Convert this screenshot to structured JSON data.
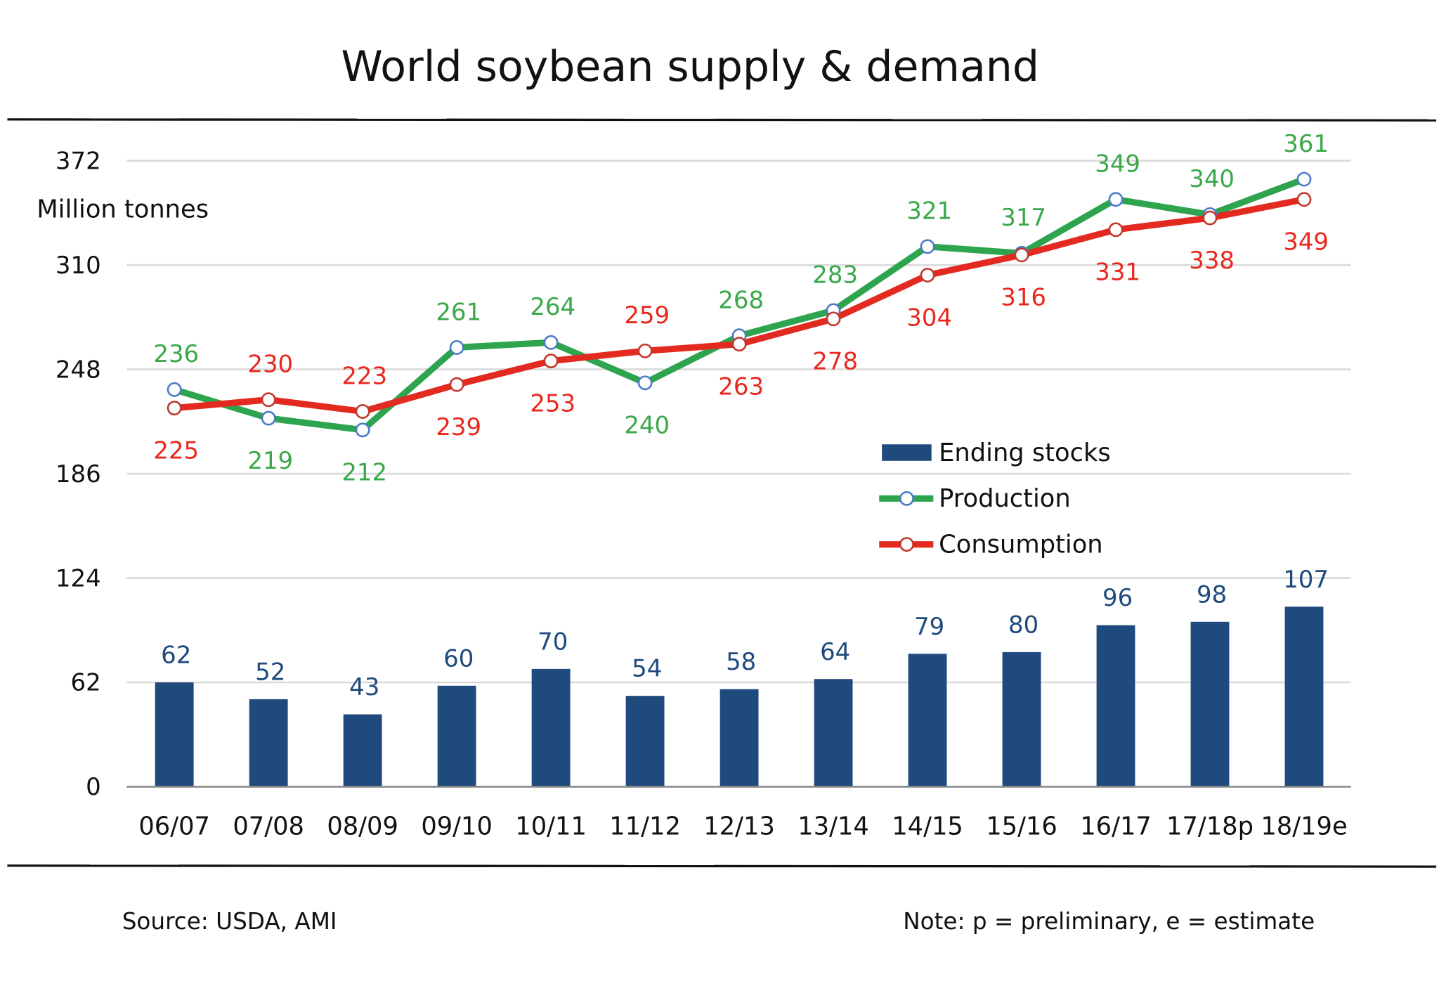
{
  "chart_data": {
    "type": "bar+line",
    "title": "World soybean supply & demand",
    "ylabel": "Million tonnes",
    "ylim": [
      0,
      372
    ],
    "yticks": [
      "0",
      "62",
      "124",
      "186",
      "248",
      "310",
      "372"
    ],
    "grid": true,
    "legend_placement": "center-right",
    "categories": [
      "06/07",
      "07/08",
      "08/09",
      "09/10",
      "10/11",
      "11/12",
      "12/13",
      "13/14",
      "14/15",
      "15/16",
      "16/17",
      "17/18p",
      "18/19e"
    ],
    "series": [
      {
        "name": "Ending stocks",
        "type": "bar",
        "color": "#1f4a7d",
        "values": [
          62,
          52,
          43,
          60,
          70,
          54,
          58,
          64,
          79,
          80,
          96,
          98,
          107
        ]
      },
      {
        "name": "Production",
        "type": "line",
        "color": "#2ea44f",
        "marker_color": "#4a7cc9",
        "label_color": "#3aa84a",
        "values": [
          236,
          219,
          212,
          261,
          264,
          240,
          268,
          283,
          321,
          317,
          349,
          340,
          361
        ]
      },
      {
        "name": "Consumption",
        "type": "line",
        "color": "#e32a20",
        "marker_color": "#c0392b",
        "label_color": "#e8281e",
        "values": [
          225,
          230,
          223,
          239,
          253,
          259,
          263,
          278,
          304,
          316,
          331,
          338,
          349
        ]
      }
    ]
  },
  "footer": {
    "source": "Source: USDA, AMI",
    "note": "Note: p = preliminary, e = estimate"
  }
}
